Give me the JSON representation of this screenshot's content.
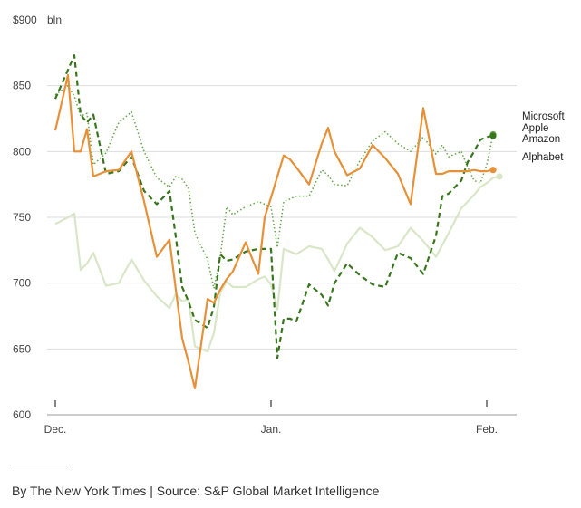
{
  "chart_data": {
    "type": "line",
    "title": "",
    "ylabel": "bln",
    "unit_prefix": "$",
    "ylim": [
      600,
      900
    ],
    "yticks": [
      {
        "value": 900,
        "label": "$900"
      },
      {
        "value": 850,
        "label": "850"
      },
      {
        "value": 800,
        "label": "800"
      },
      {
        "value": 750,
        "label": "750"
      },
      {
        "value": 700,
        "label": "700"
      },
      {
        "value": 650,
        "label": "650"
      },
      {
        "value": 600,
        "label": "600"
      }
    ],
    "xrange": [
      0,
      35
    ],
    "xticks": [
      {
        "x": 0,
        "label": "Dec."
      },
      {
        "x": 17,
        "label": "Jan."
      },
      {
        "x": 34,
        "label": "Feb."
      }
    ],
    "series": [
      {
        "name": "Microsoft",
        "color": "#6aa84f",
        "style": "dotted",
        "x": [
          0,
          1,
          1.5,
          2,
          2.5,
          3,
          4,
          5,
          6,
          7,
          8,
          9,
          9.5,
          10,
          10.5,
          11,
          12,
          12.5,
          13,
          13.5,
          14,
          15,
          16,
          16.5,
          17,
          17.5,
          18,
          18.5,
          19,
          20,
          21,
          21.5,
          22,
          23,
          24,
          25,
          26,
          27,
          28,
          29,
          30,
          30.5,
          31,
          32,
          32.5,
          33,
          33.5,
          34,
          34.5
        ],
        "values": [
          843,
          850,
          842,
          827,
          829,
          790,
          799,
          822,
          830,
          800,
          780,
          773,
          781,
          779,
          772,
          738,
          718,
          696,
          720,
          758,
          752,
          758,
          762,
          760,
          758,
          727,
          762,
          764,
          766,
          766,
          786,
          782,
          775,
          774,
          793,
          808,
          815,
          806,
          800,
          811,
          798,
          805,
          796,
          800,
          788,
          778,
          776,
          790,
          813
        ]
      },
      {
        "name": "Apple",
        "color": "#d9e6c7",
        "style": "solid",
        "x": [
          0,
          1,
          1.5,
          2,
          2.5,
          3,
          4,
          5,
          6,
          7,
          8,
          9,
          9.5,
          10,
          10.5,
          11,
          12,
          12.5,
          13,
          13.5,
          14,
          15,
          16,
          16.5,
          17,
          17.5,
          18,
          18.5,
          19,
          20,
          21,
          21.5,
          22,
          23,
          24,
          25,
          26,
          27,
          28,
          29,
          30,
          30.5,
          31,
          32,
          32.5,
          33,
          33.5,
          34,
          34.5,
          35
        ],
        "values": [
          745,
          750,
          753,
          710,
          715,
          723,
          698,
          700,
          718,
          702,
          690,
          681,
          692,
          686,
          688,
          652,
          648,
          662,
          693,
          701,
          697,
          697,
          703,
          705,
          699,
          680,
          726,
          724,
          722,
          728,
          726,
          718,
          709,
          730,
          742,
          735,
          725,
          728,
          742,
          732,
          720,
          729,
          738,
          757,
          762,
          767,
          773,
          776,
          780,
          781
        ]
      },
      {
        "name": "Amazon",
        "color": "#38761d",
        "style": "dashed",
        "x": [
          0,
          1,
          1.5,
          2,
          2.5,
          3,
          4,
          5,
          6,
          7,
          8,
          9,
          9.5,
          10,
          10.5,
          11,
          12,
          12.5,
          13,
          13.5,
          14,
          15,
          16,
          16.5,
          17,
          17.5,
          18,
          18.5,
          19,
          20,
          21,
          21.5,
          22,
          23,
          24,
          25,
          26,
          27,
          28,
          29,
          30,
          30.5,
          31,
          32,
          32.5,
          33,
          33.5,
          34,
          34.5
        ],
        "values": [
          840,
          862,
          873,
          828,
          822,
          828,
          783,
          785,
          796,
          770,
          760,
          770,
          735,
          697,
          686,
          672,
          666,
          682,
          722,
          717,
          718,
          724,
          726,
          726,
          726,
          643,
          673,
          673,
          671,
          699,
          691,
          683,
          700,
          715,
          706,
          699,
          697,
          723,
          719,
          707,
          736,
          766,
          768,
          778,
          792,
          800,
          809,
          811,
          812
        ]
      },
      {
        "name": "Alphabet",
        "color": "#e69138",
        "style": "solid",
        "x": [
          0,
          1,
          1.5,
          2,
          2.5,
          3,
          4,
          5,
          6,
          7,
          8,
          9,
          9.5,
          10,
          10.5,
          11,
          12,
          12.5,
          13,
          13.5,
          14,
          15,
          16,
          16.5,
          17,
          17.5,
          18,
          18.5,
          19,
          20,
          21,
          21.5,
          22,
          23,
          24,
          25,
          26,
          27,
          28,
          29,
          30,
          30.5,
          31,
          32,
          32.5,
          33,
          33.5,
          34,
          34.5
        ],
        "values": [
          816,
          858,
          800,
          800,
          817,
          781,
          785,
          786,
          800,
          762,
          720,
          733,
          695,
          658,
          640,
          620,
          688,
          685,
          695,
          703,
          709,
          731,
          707,
          750,
          765,
          781,
          797,
          794,
          788,
          775,
          806,
          818,
          800,
          782,
          787,
          805,
          795,
          783,
          760,
          833,
          783,
          783,
          785,
          785,
          785,
          786,
          785,
          785,
          786
        ]
      }
    ],
    "legend": {
      "placement": "right-end",
      "entries": [
        "Microsoft",
        "Apple",
        "Amazon",
        "Alphabet"
      ]
    }
  },
  "footer": {
    "source": "By The New York Times | Source: S&P Global Market Intelligence"
  }
}
